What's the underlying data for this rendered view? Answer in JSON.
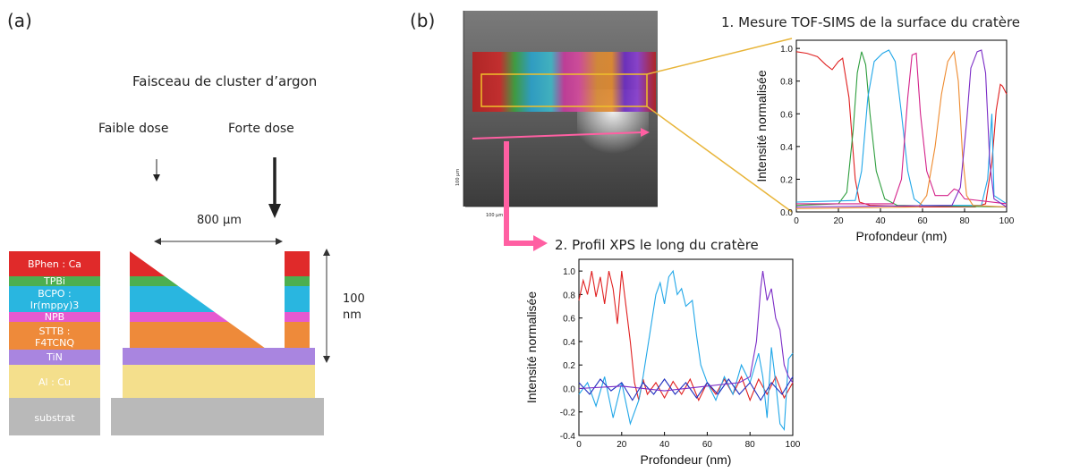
{
  "panel_a": {
    "label": "(a)",
    "beam_title": "Faisceau de cluster d’argon",
    "low_dose": "Faible dose",
    "high_dose": "Forte dose",
    "width_label": "800 µm",
    "depth_label_value": "100",
    "depth_label_unit": "nm",
    "layers": [
      {
        "label": "BPhen : Ca",
        "color": "#e02a2a"
      },
      {
        "label": "TPBi",
        "color": "#4caf50"
      },
      {
        "label": "BCPO :",
        "label2": "Ir(mppy)3",
        "color": "#29b6e0"
      },
      {
        "label": "NPB",
        "color": "#e55ad0"
      },
      {
        "label": "STTB :",
        "label2": "F4TCNQ",
        "color": "#ee8a3a"
      },
      {
        "label": "TiN",
        "color": "#a985e0"
      },
      {
        "label": "Al : Cu",
        "color": "#f4df8c"
      },
      {
        "label": "substrat",
        "color": "#b9b9b9"
      }
    ]
  },
  "panel_b": {
    "label": "(b)",
    "image_scale_1": "100 µm",
    "image_scale_2": "100 µm",
    "tof_title": "1. Mesure TOF-SIMS de la surface du cratère",
    "xps_title": "2. Profil XPS le long du cratère"
  },
  "chart_data": [
    {
      "type": "line",
      "name": "tof-sims",
      "title": "1. Mesure TOF-SIMS de la surface du cratère",
      "xlabel": "Profondeur (nm)",
      "ylabel": "Intensité normalisée",
      "xlim": [
        0,
        100
      ],
      "ylim": [
        0,
        1.05
      ],
      "xticks": [
        0,
        20,
        40,
        60,
        80,
        100
      ],
      "yticks": [
        0.0,
        0.2,
        0.4,
        0.6,
        0.8,
        1.0
      ],
      "series": [
        {
          "color": "#e02020",
          "points": [
            [
              0,
              0.98
            ],
            [
              5,
              0.97
            ],
            [
              10,
              0.95
            ],
            [
              14,
              0.9
            ],
            [
              17,
              0.87
            ],
            [
              20,
              0.92
            ],
            [
              22,
              0.94
            ],
            [
              25,
              0.7
            ],
            [
              28,
              0.2
            ],
            [
              30,
              0.06
            ],
            [
              35,
              0.04
            ],
            [
              60,
              0.03
            ],
            [
              85,
              0.03
            ],
            [
              90,
              0.05
            ],
            [
              93,
              0.3
            ],
            [
              95,
              0.62
            ],
            [
              97,
              0.78
            ],
            [
              98,
              0.77
            ],
            [
              100,
              0.72
            ]
          ]
        },
        {
          "color": "#2e9e3e",
          "points": [
            [
              0,
              0.04
            ],
            [
              20,
              0.05
            ],
            [
              24,
              0.12
            ],
            [
              27,
              0.5
            ],
            [
              29,
              0.85
            ],
            [
              31,
              0.98
            ],
            [
              33,
              0.9
            ],
            [
              35,
              0.6
            ],
            [
              38,
              0.25
            ],
            [
              42,
              0.08
            ],
            [
              48,
              0.04
            ],
            [
              100,
              0.03
            ]
          ]
        },
        {
          "color": "#21a7e8",
          "points": [
            [
              0,
              0.06
            ],
            [
              28,
              0.07
            ],
            [
              31,
              0.25
            ],
            [
              34,
              0.7
            ],
            [
              37,
              0.92
            ],
            [
              41,
              0.97
            ],
            [
              44,
              0.99
            ],
            [
              47,
              0.92
            ],
            [
              50,
              0.6
            ],
            [
              53,
              0.25
            ],
            [
              56,
              0.08
            ],
            [
              60,
              0.04
            ],
            [
              88,
              0.04
            ],
            [
              91,
              0.2
            ],
            [
              93,
              0.6
            ],
            [
              94,
              0.1
            ],
            [
              100,
              0.05
            ]
          ]
        },
        {
          "color": "#d4228a",
          "points": [
            [
              0,
              0.05
            ],
            [
              46,
              0.05
            ],
            [
              50,
              0.2
            ],
            [
              53,
              0.7
            ],
            [
              55,
              0.96
            ],
            [
              57,
              0.97
            ],
            [
              59,
              0.6
            ],
            [
              62,
              0.25
            ],
            [
              66,
              0.1
            ],
            [
              72,
              0.1
            ],
            [
              75,
              0.14
            ],
            [
              77,
              0.13
            ],
            [
              80,
              0.08
            ],
            [
              100,
              0.05
            ]
          ]
        },
        {
          "color": "#ee8a2e",
          "points": [
            [
              0,
              0.02
            ],
            [
              58,
              0.03
            ],
            [
              62,
              0.1
            ],
            [
              66,
              0.4
            ],
            [
              69,
              0.72
            ],
            [
              72,
              0.92
            ],
            [
              75,
              0.98
            ],
            [
              77,
              0.8
            ],
            [
              79,
              0.35
            ],
            [
              81,
              0.1
            ],
            [
              84,
              0.04
            ],
            [
              100,
              0.03
            ]
          ]
        },
        {
          "color": "#7b2cc6",
          "points": [
            [
              0,
              0.03
            ],
            [
              74,
              0.04
            ],
            [
              78,
              0.15
            ],
            [
              81,
              0.55
            ],
            [
              83,
              0.88
            ],
            [
              86,
              0.98
            ],
            [
              88,
              0.99
            ],
            [
              90,
              0.85
            ],
            [
              92,
              0.3
            ],
            [
              94,
              0.08
            ],
            [
              100,
              0.03
            ]
          ]
        }
      ]
    },
    {
      "type": "line",
      "name": "xps",
      "title": "2. Profil XPS le long du cratère",
      "xlabel": "Profondeur (nm)",
      "ylabel": "Intensité normalisée",
      "xlim": [
        0,
        100
      ],
      "ylim": [
        -0.4,
        1.1
      ],
      "xticks": [
        0,
        20,
        40,
        60,
        80,
        100
      ],
      "yticks": [
        -0.4,
        -0.2,
        0.0,
        0.2,
        0.4,
        0.6,
        0.8,
        1.0
      ],
      "series": [
        {
          "color": "#e02020",
          "points": [
            [
              0,
              0.75
            ],
            [
              2,
              0.92
            ],
            [
              4,
              0.8
            ],
            [
              6,
              1.0
            ],
            [
              8,
              0.78
            ],
            [
              10,
              0.95
            ],
            [
              12,
              0.72
            ],
            [
              14,
              1.0
            ],
            [
              16,
              0.85
            ],
            [
              18,
              0.55
            ],
            [
              20,
              1.0
            ],
            [
              22,
              0.7
            ],
            [
              24,
              0.4
            ],
            [
              26,
              0.05
            ],
            [
              28,
              -0.1
            ],
            [
              30,
              0.08
            ],
            [
              32,
              -0.05
            ],
            [
              36,
              0.05
            ],
            [
              40,
              -0.08
            ],
            [
              44,
              0.06
            ],
            [
              48,
              -0.05
            ],
            [
              52,
              0.08
            ],
            [
              56,
              -0.1
            ],
            [
              60,
              0.05
            ],
            [
              64,
              -0.05
            ],
            [
              68,
              0.08
            ],
            [
              72,
              -0.05
            ],
            [
              76,
              0.1
            ],
            [
              80,
              -0.1
            ],
            [
              84,
              0.08
            ],
            [
              88,
              -0.05
            ],
            [
              92,
              0.1
            ],
            [
              96,
              -0.08
            ],
            [
              100,
              0.05
            ]
          ]
        },
        {
          "color": "#21a7e8",
          "points": [
            [
              0,
              -0.05
            ],
            [
              4,
              0.05
            ],
            [
              8,
              -0.15
            ],
            [
              12,
              0.1
            ],
            [
              16,
              -0.25
            ],
            [
              20,
              0.05
            ],
            [
              24,
              -0.3
            ],
            [
              28,
              -0.1
            ],
            [
              30,
              0.1
            ],
            [
              33,
              0.45
            ],
            [
              36,
              0.8
            ],
            [
              38,
              0.9
            ],
            [
              40,
              0.72
            ],
            [
              42,
              0.95
            ],
            [
              44,
              1.0
            ],
            [
              46,
              0.8
            ],
            [
              48,
              0.85
            ],
            [
              50,
              0.7
            ],
            [
              53,
              0.75
            ],
            [
              55,
              0.45
            ],
            [
              57,
              0.2
            ],
            [
              60,
              0.05
            ],
            [
              64,
              -0.1
            ],
            [
              68,
              0.1
            ],
            [
              72,
              -0.05
            ],
            [
              76,
              0.2
            ],
            [
              80,
              0.05
            ],
            [
              84,
              0.3
            ],
            [
              86,
              0.1
            ],
            [
              88,
              -0.25
            ],
            [
              90,
              0.35
            ],
            [
              92,
              0.05
            ],
            [
              94,
              -0.3
            ],
            [
              96,
              -0.35
            ],
            [
              98,
              0.25
            ],
            [
              100,
              0.3
            ]
          ]
        },
        {
          "color": "#1f2fbf",
          "points": [
            [
              0,
              0.05
            ],
            [
              5,
              -0.05
            ],
            [
              10,
              0.08
            ],
            [
              15,
              -0.02
            ],
            [
              20,
              0.05
            ],
            [
              25,
              -0.1
            ],
            [
              30,
              0.05
            ],
            [
              35,
              -0.05
            ],
            [
              40,
              0.08
            ],
            [
              45,
              -0.05
            ],
            [
              50,
              0.05
            ],
            [
              55,
              -0.08
            ],
            [
              60,
              0.05
            ],
            [
              65,
              -0.05
            ],
            [
              70,
              0.08
            ],
            [
              75,
              -0.05
            ],
            [
              80,
              0.05
            ],
            [
              85,
              -0.1
            ],
            [
              90,
              0.05
            ],
            [
              95,
              -0.05
            ],
            [
              100,
              0.1
            ]
          ]
        },
        {
          "color": "#7b2cc6",
          "points": [
            [
              0,
              0.0
            ],
            [
              20,
              0.02
            ],
            [
              40,
              -0.02
            ],
            [
              60,
              0.02
            ],
            [
              75,
              0.05
            ],
            [
              80,
              0.1
            ],
            [
              83,
              0.4
            ],
            [
              85,
              0.85
            ],
            [
              86,
              1.0
            ],
            [
              88,
              0.75
            ],
            [
              90,
              0.85
            ],
            [
              92,
              0.6
            ],
            [
              94,
              0.5
            ],
            [
              96,
              0.2
            ],
            [
              98,
              0.1
            ],
            [
              100,
              0.05
            ]
          ]
        }
      ]
    }
  ]
}
